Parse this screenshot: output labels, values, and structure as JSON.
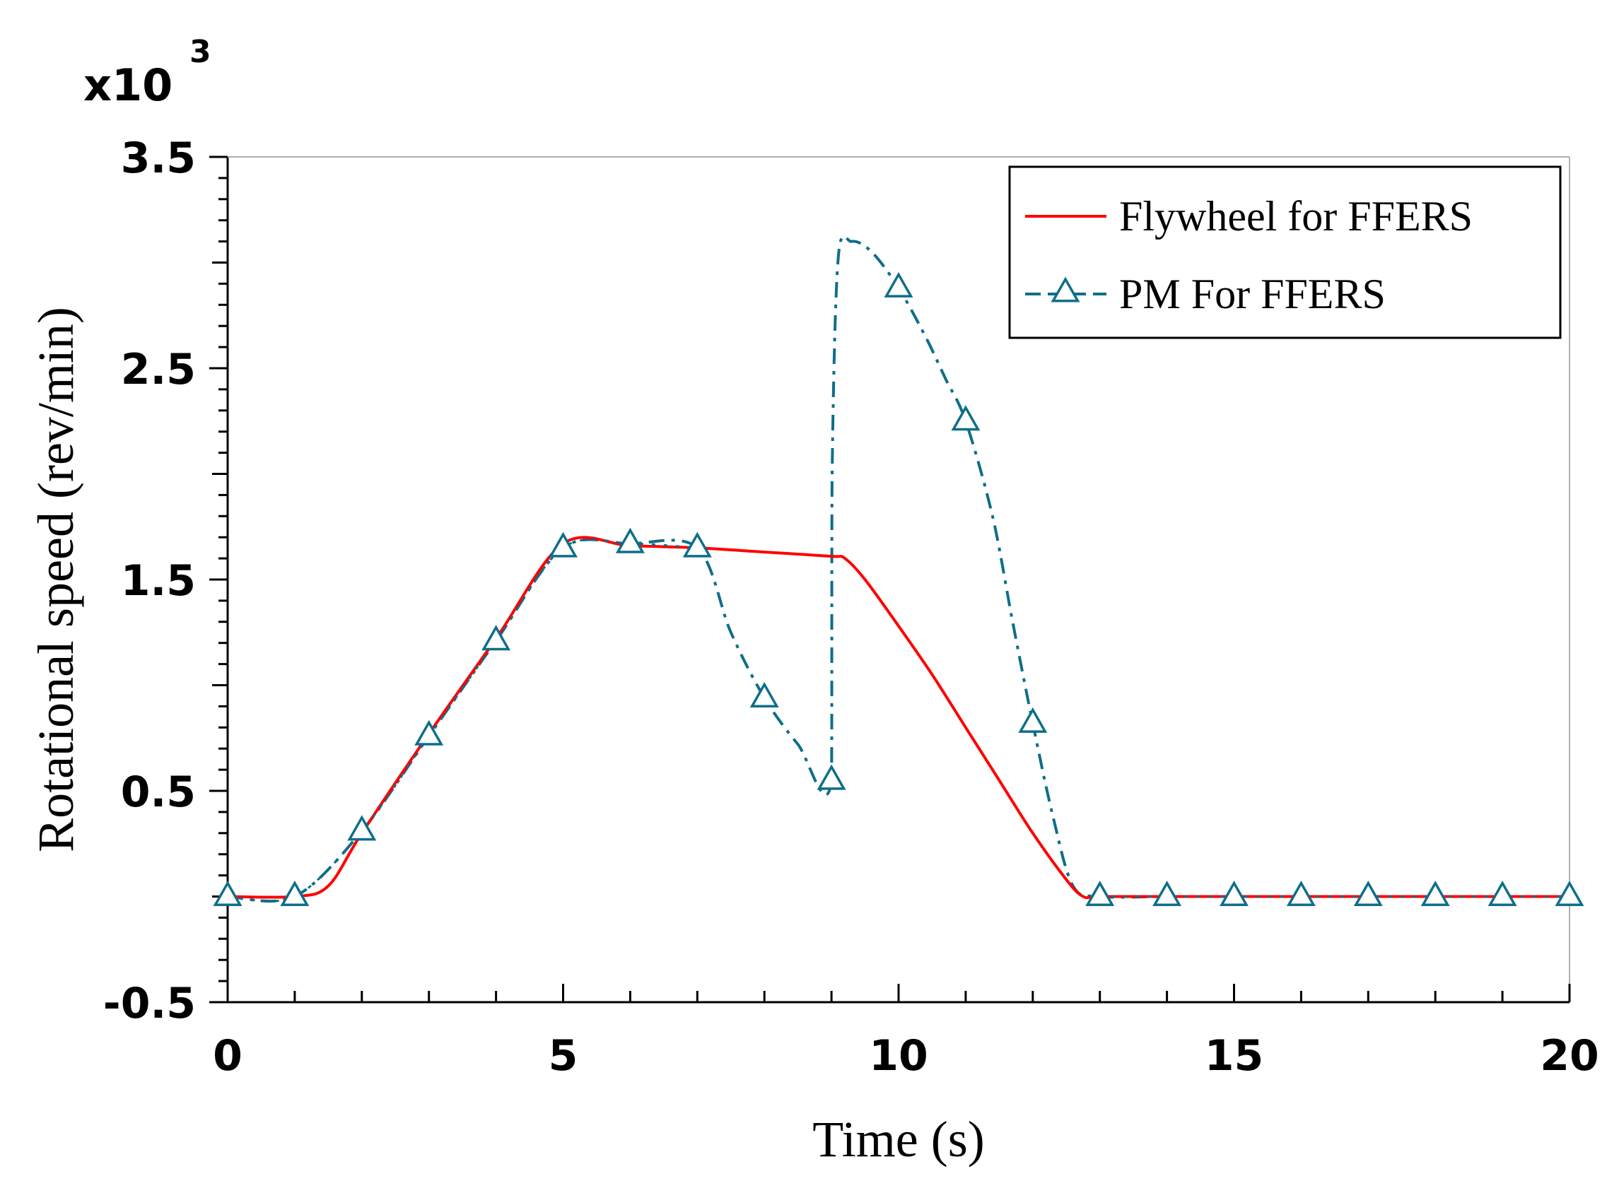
{
  "chart_data": {
    "type": "line",
    "multiplier": {
      "base": "x10",
      "exponent": "3"
    },
    "xlabel": "Time (s)",
    "ylabel": "Rotational speed (rev/min)",
    "xlim": [
      0,
      20
    ],
    "ylim": [
      -0.5,
      3.5
    ],
    "x_ticks": [
      0,
      5,
      10,
      15,
      20
    ],
    "x_tick_labels": [
      "0",
      "5",
      "10",
      "15",
      "20"
    ],
    "y_ticks": [
      -0.5,
      0.5,
      1.5,
      2.5,
      3.5
    ],
    "y_tick_labels": [
      "-0.5",
      "0.5",
      "1.5",
      "2.5",
      "3.5"
    ],
    "legend_position": "top-right",
    "series": [
      {
        "name": "Flywheel for FFERS",
        "color": "#ff0000",
        "style": "solid",
        "x": [
          0,
          1,
          1.5,
          2,
          3,
          4,
          5,
          6,
          7,
          8,
          9,
          9.2,
          9.5,
          10,
          10.5,
          11,
          11.5,
          12,
          12.5,
          12.75,
          13,
          14,
          15,
          16,
          17,
          18,
          19,
          20
        ],
        "y": [
          0,
          0,
          0.05,
          0.3,
          0.77,
          1.22,
          1.67,
          1.66,
          1.65,
          1.63,
          1.61,
          1.6,
          1.5,
          1.28,
          1.05,
          0.8,
          0.55,
          0.3,
          0.08,
          0,
          0,
          0,
          0,
          0,
          0,
          0,
          0,
          0
        ]
      },
      {
        "name": "PM For FFERS",
        "color": "#0e6e8a",
        "style": "dash-dot",
        "marker": "triangle",
        "x": [
          0,
          1,
          2,
          3,
          4,
          5,
          6,
          7,
          7.5,
          8,
          8.5,
          9,
          9.01,
          9.1,
          9.3,
          9.6,
          10,
          10.4,
          10.7,
          11,
          11.4,
          11.7,
          12,
          12.3,
          12.6,
          13,
          14,
          15,
          16,
          17,
          18,
          19,
          20
        ],
        "y": [
          0,
          0,
          0.31,
          0.76,
          1.21,
          1.65,
          1.67,
          1.65,
          1.25,
          0.94,
          0.72,
          0.55,
          2.0,
          3.02,
          3.1,
          3.05,
          2.88,
          2.65,
          2.45,
          2.25,
          1.8,
          1.3,
          0.82,
          0.38,
          0.05,
          0,
          0,
          0,
          0,
          0,
          0,
          0,
          0
        ],
        "marker_x": [
          0,
          1,
          2,
          3,
          4,
          5,
          6,
          7,
          8,
          9,
          10,
          11,
          12,
          13,
          14,
          15,
          16,
          17,
          18,
          19,
          20
        ],
        "marker_y": [
          0,
          0,
          0.31,
          0.76,
          1.21,
          1.65,
          1.67,
          1.65,
          0.94,
          0.55,
          2.88,
          2.25,
          0.82,
          0,
          0,
          0,
          0,
          0,
          0,
          0,
          0
        ]
      }
    ]
  }
}
